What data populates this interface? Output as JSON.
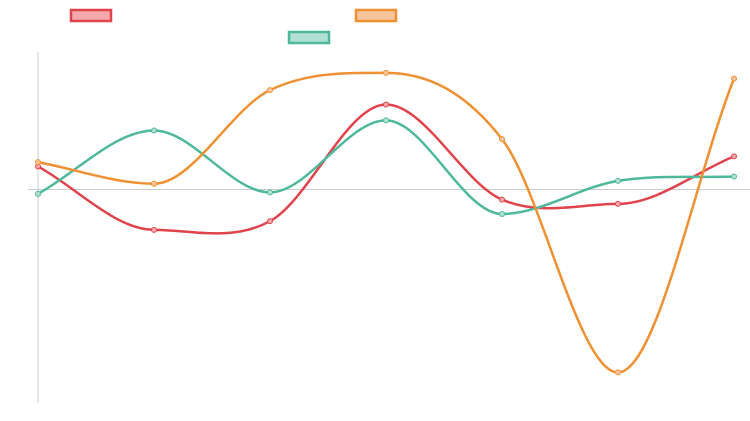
{
  "chart_data": {
    "type": "line",
    "title": "",
    "xlabel": "",
    "ylabel": "",
    "x": [
      0,
      1,
      2,
      3,
      4,
      5,
      6
    ],
    "ylim": [
      -12.6,
      10
    ],
    "grid": false,
    "legend_placement": "top",
    "series": [
      {
        "color": "#e0434b",
        "fill": "#f5a9ac",
        "values": [
          1.6,
          -2.8,
          -2.2,
          5.9,
          -0.7,
          -1.0,
          2.3
        ]
      },
      {
        "color": "#4db89a",
        "fill": "#b2e0d3",
        "values": [
          -0.3,
          4.1,
          -0.2,
          4.8,
          -1.7,
          0.6,
          0.9
        ]
      },
      {
        "color": "#ef9032",
        "fill": "#f7c59c",
        "values": [
          1.9,
          0.4,
          6.9,
          8.1,
          3.5,
          -12.7,
          7.7
        ]
      }
    ]
  }
}
